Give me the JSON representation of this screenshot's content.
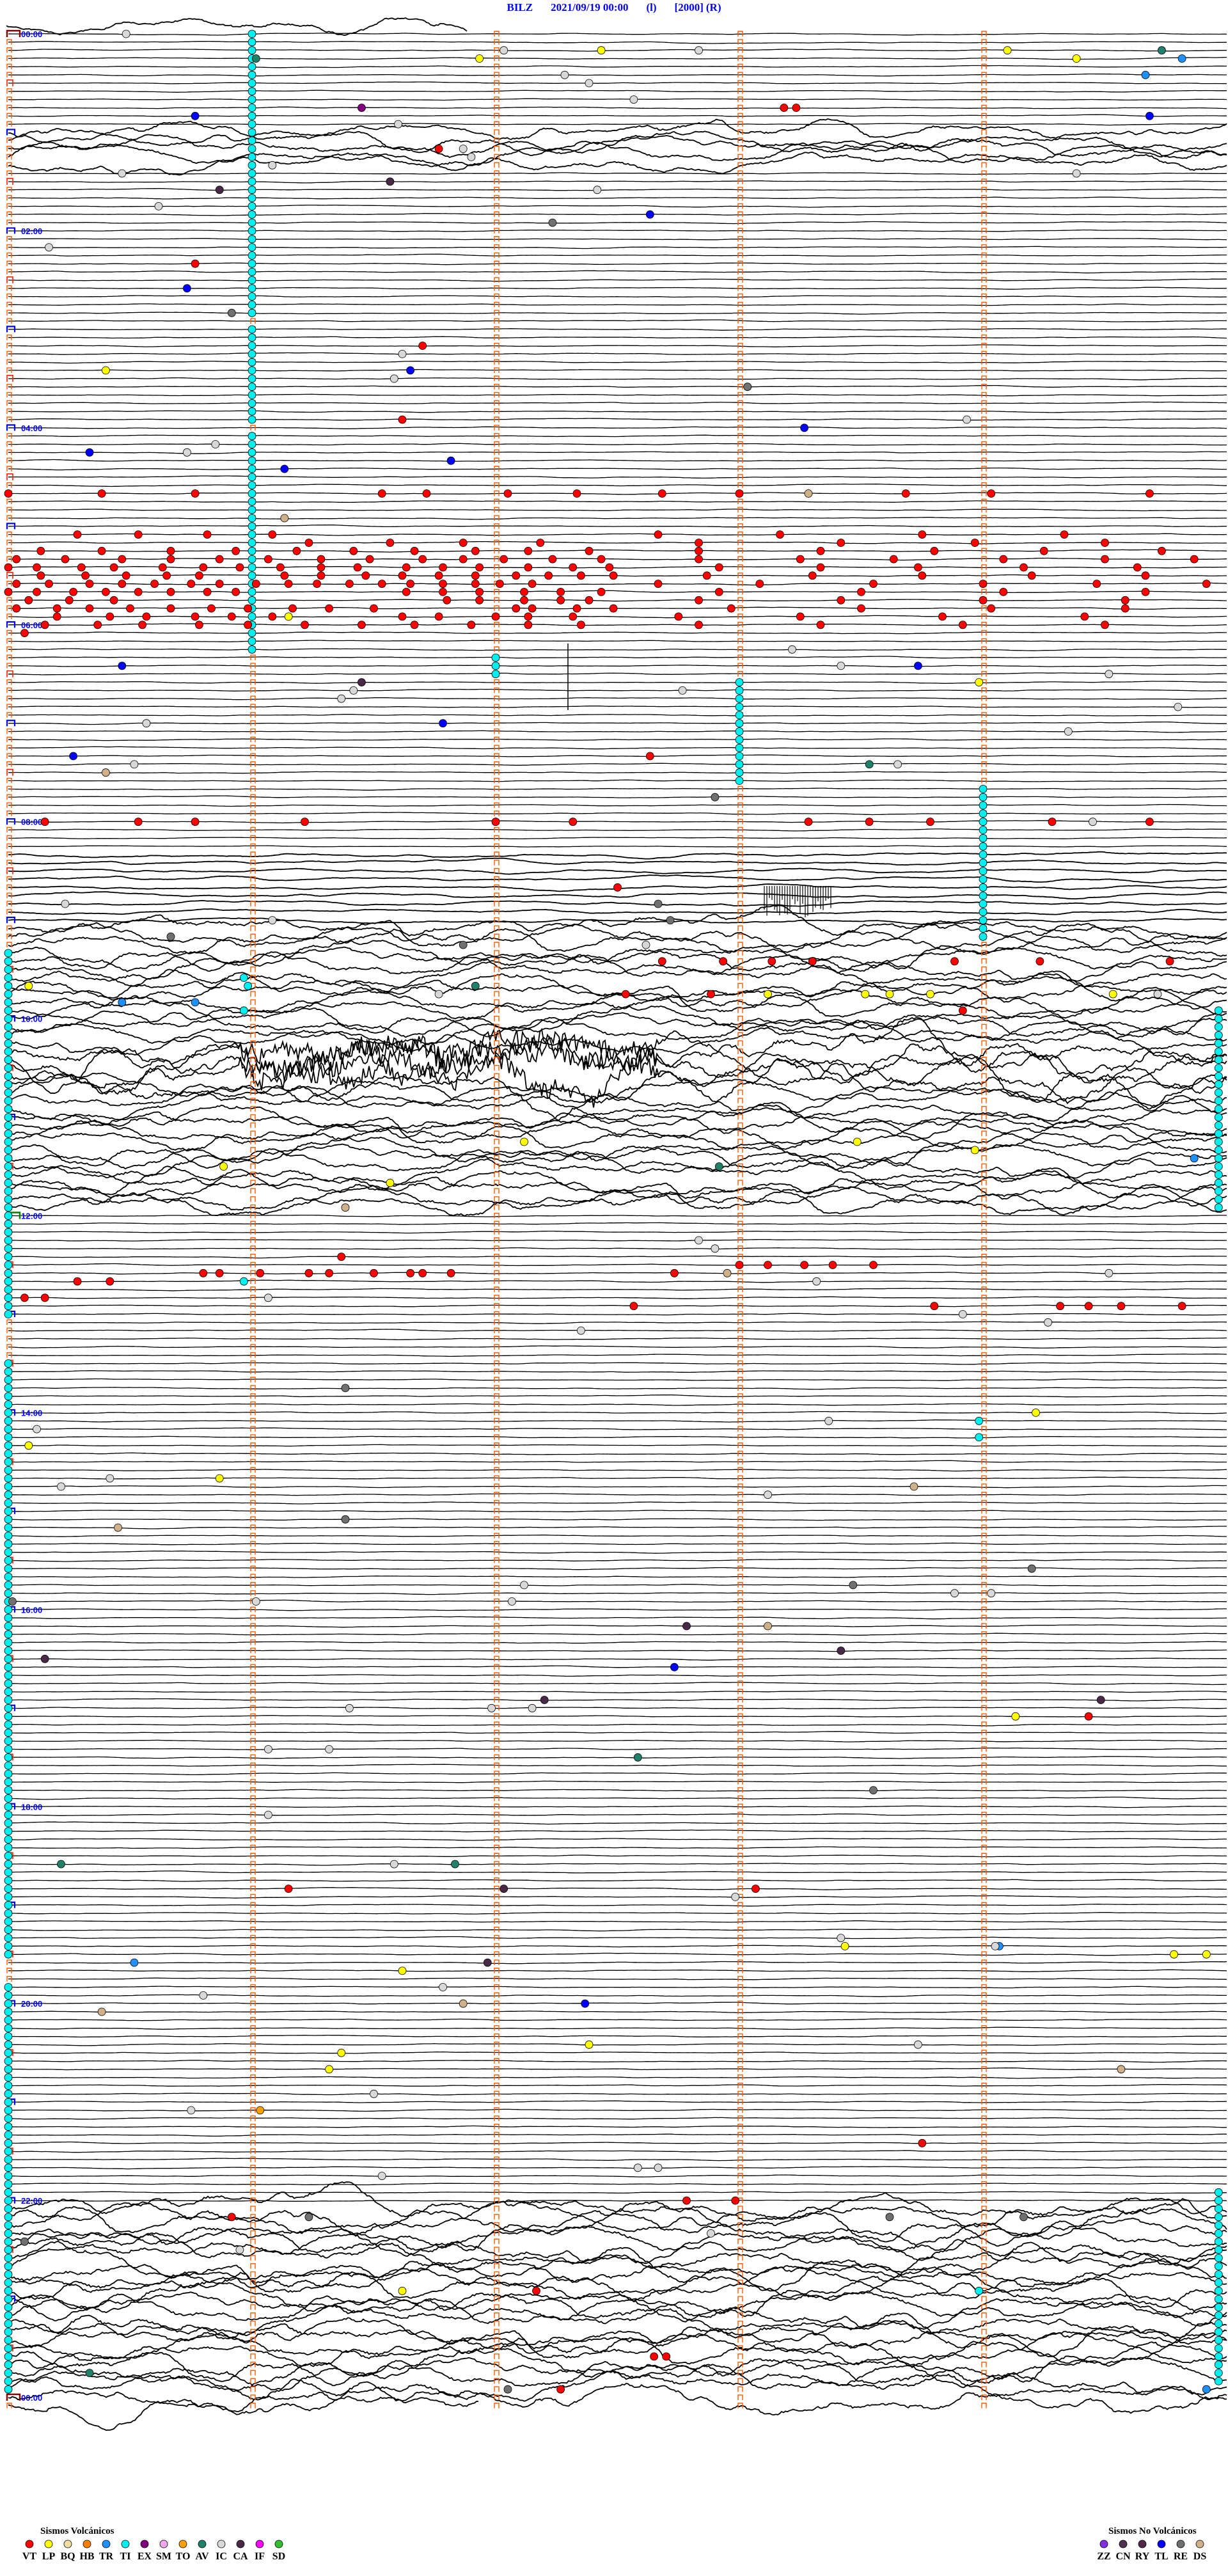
{
  "title": {
    "station": "BILZ",
    "datetime": "2021/09/19 00:00",
    "flag1": "(l)",
    "scale": "[2000]",
    "flag2": "(R)"
  },
  "chart_data": {
    "type": "scatter",
    "description_kind": "helicorder",
    "line_interval_min": 5,
    "hour_labels": [
      "00:00",
      "02:00",
      "04:00",
      "06:00",
      "08:00",
      "10:00",
      "12:00",
      "14:00",
      "16:00",
      "18:00",
      "20:00",
      "22:00",
      "00:00"
    ],
    "colors": {
      "VT": "#ff0000",
      "LP": "#ffff00",
      "BQ": "#f0dca0",
      "HB": "#ff8000",
      "TR": "#1e90ff",
      "TI": "#00f0f0",
      "EX": "#800080",
      "SM": "#f0a8e8",
      "TO": "#ffa000",
      "AV": "#20806a",
      "IC": "#d8d8d8",
      "CA": "#4a2848",
      "IF": "#ff00ff",
      "SD": "#30c030",
      "ZZ": "#8030e0",
      "CN": "#503050",
      "RY": "#502848",
      "TL": "#0000ff",
      "RE": "#707070",
      "DS": "#d0b088",
      "trace": "#000000",
      "minute_marker": "#ff5a00",
      "hour_label": "#0000ff"
    },
    "events": {
      "VT": [
        "00:48:11",
        "00:48:14",
        "01:11:46",
        "02:20:46",
        "03:11:42",
        "03:56:37",
        "04:40:00",
        "04:40:23",
        "04:40:46",
        "04:41:32",
        "04:41:43",
        "04:42:03",
        "04:42:20",
        "04:42:41",
        "04:43:00",
        "04:43:41",
        "04:44:02",
        "04:44:41",
        "05:05:17",
        "05:05:32",
        "05:05:49",
        "05:06:05",
        "05:07:40",
        "05:08:10",
        "05:08:45",
        "05:09:20",
        "05:11:14",
        "05:11:34",
        "05:11:52",
        "05:12:11",
        "05:12:50",
        "05:13:25",
        "05:13:58",
        "05:14:30",
        "05:15:08",
        "05:15:23",
        "05:15:40",
        "05:15:56",
        "05:16:11",
        "05:16:25",
        "05:16:40",
        "05:16:55",
        "05:17:08",
        "05:17:23",
        "05:17:50",
        "05:18:20",
        "05:18:48",
        "05:19:15",
        "05:19:44",
        "05:20:02",
        "05:20:14",
        "05:20:28",
        "05:20:40",
        "05:20:52",
        "05:21:04",
        "05:21:17",
        "05:21:29",
        "05:21:42",
        "05:21:52",
        "05:22:02",
        "05:22:14",
        "05:22:26",
        "05:22:50",
        "05:23:15",
        "05:23:38",
        "05:24:05",
        "05:24:30",
        "05:24:52",
        "05:25:00",
        "05:25:07",
        "05:25:18",
        "05:25:26",
        "05:25:38",
        "05:25:48",
        "05:25:57",
        "05:26:07",
        "05:26:17",
        "05:26:26",
        "05:26:38",
        "05:26:47",
        "05:26:56",
        "05:27:08",
        "05:27:19",
        "05:27:28",
        "05:27:55",
        "05:28:20",
        "05:28:44",
        "05:29:10",
        "05:29:38",
        "05:30:08",
        "05:30:19",
        "05:30:29",
        "05:30:39",
        "05:30:47",
        "05:31:08",
        "05:31:17",
        "05:31:28",
        "05:31:37",
        "05:31:46",
        "05:31:55",
        "05:32:05",
        "05:32:13",
        "05:32:21",
        "05:32:29",
        "05:32:52",
        "05:33:18",
        "05:33:45",
        "05:34:12",
        "05:34:40",
        "05:35:02",
        "05:35:10",
        "05:35:20",
        "05:35:28",
        "05:35:36",
        "05:35:45",
        "05:35:52",
        "05:36:01",
        "05:36:09",
        "05:36:16",
        "05:36:24",
        "05:36:32",
        "05:36:39",
        "05:36:47",
        "05:36:55",
        "05:37:01",
        "05:37:09",
        "05:37:40",
        "05:38:05",
        "05:38:33",
        "05:39:00",
        "05:39:28",
        "05:39:55",
        "05:40:00",
        "05:40:07",
        "05:40:16",
        "05:40:24",
        "05:40:32",
        "05:40:40",
        "05:40:49",
        "05:40:56",
        "05:41:38",
        "05:41:47",
        "05:41:56",
        "05:42:07",
        "05:42:16",
        "05:42:26",
        "05:42:55",
        "05:43:30",
        "05:44:05",
        "05:44:40",
        "05:45:05",
        "05:45:15",
        "05:45:26",
        "05:46:48",
        "05:46:56",
        "05:47:07",
        "05:47:16",
        "05:47:23",
        "05:47:50",
        "05:48:25",
        "05:49:00",
        "05:49:35",
        "05:50:02",
        "05:50:12",
        "05:50:20",
        "05:50:30",
        "05:50:40",
        "05:50:50",
        "05:50:59",
        "05:51:10",
        "05:51:19",
        "05:51:30",
        "05:52:05",
        "05:52:09",
        "05:52:20",
        "05:52:29",
        "05:52:58",
        "05:53:30",
        "05:54:02",
        "05:54:35",
        "05:55:12",
        "05:55:25",
        "05:55:34",
        "05:55:46",
        "05:55:55",
        "05:56:05",
        "05:56:37",
        "05:56:46",
        "05:57:00",
        "05:57:08",
        "05:57:19",
        "05:57:45",
        "05:58:15",
        "05:58:50",
        "05:59:25",
        "06:00:09",
        "06:00:22",
        "06:00:33",
        "06:00:47",
        "06:00:59",
        "06:01:13",
        "06:01:27",
        "06:01:40",
        "06:01:54",
        "06:02:08",
        "06:02:21",
        "06:02:50",
        "06:03:20",
        "06:03:55",
        "06:04:30",
        "06:05:04",
        "07:22:38",
        "08:00:09",
        "08:00:32",
        "08:00:46",
        "08:01:13",
        "08:02:00",
        "08:02:19",
        "08:03:17",
        "08:03:32",
        "08:03:47",
        "08:04:17",
        "08:04:41",
        "08:42:30",
        "09:27:41",
        "09:27:56",
        "09:28:08",
        "09:28:18",
        "09:28:53",
        "09:29:14",
        "09:29:46",
        "09:47:32",
        "09:47:53",
        "09:58:55",
        "12:26:22",
        "12:37:44",
        "12:33:00",
        "12:33:07",
        "12:33:16",
        "12:33:23",
        "12:33:33",
        "12:35:48",
        "12:35:52",
        "12:36:02",
        "12:36:14",
        "12:36:19",
        "12:36:30",
        "12:36:39",
        "12:36:42",
        "12:36:49",
        "12:40:17",
        "12:40:25",
        "12:50:04",
        "12:50:09",
        "12:57:34",
        "12:58:48",
        "12:59:19",
        "12:59:26",
        "12:59:34",
        "12:59:49",
        "17:09:26",
        "18:51:09",
        "18:53:04",
        "21:28:45",
        "22:02:47",
        "22:02:59",
        "22:10:55",
        "22:57:10",
        "23:37:39",
        "23:37:42",
        "23:57:16"
      ],
      "LP": [
        "00:12:26",
        "00:14:06",
        "00:16:56",
        "00:19:23",
        "03:25:24",
        "05:56:09",
        "06:38:59",
        "09:40:05",
        "09:48:07",
        "09:48:31",
        "09:48:37",
        "09:48:47",
        "09:49:32",
        "11:17:07",
        "11:18:29",
        "11:23:58",
        "11:30:53",
        "11:41:34",
        "14:04:13",
        "14:20:05",
        "14:40:52",
        "17:09:08",
        "19:28:26",
        "19:34:47",
        "19:34:55",
        "19:41:37",
        "20:27:23",
        "20:31:22",
        "20:41:19",
        "22:56:37"
      ],
      "TR": [
        "00:19:49",
        "00:29:40",
        "09:50:28",
        "09:50:46",
        "11:29:52",
        "19:29:04",
        "19:35:31",
        "23:59:55"
      ],
      "TI": [
        "09:35:58",
        "09:40:59",
        "09:55:58",
        "12:40:58",
        "14:08:59",
        "14:18:59",
        "22:58:59"
      ],
      "EX": [
        "00:46:27"
      ],
      "TO": [
        "21:06:02"
      ],
      "AV": [
        "00:14:44",
        "00:16:01",
        "07:28:32",
        "09:41:55",
        "11:32:55",
        "17:32:35",
        "18:35:13",
        "18:36:50",
        "23:45:20"
      ],
      "IC": [
        "00:00:29",
        "00:12:02",
        "00:12:50",
        "00:27:17",
        "00:32:23",
        "00:42:34",
        "00:56:36",
        "01:11:52",
        "01:16:54",
        "01:21:05",
        "01:25:28",
        "01:29:23",
        "01:37:25",
        "01:45:37",
        "02:10:10",
        "03:16:37",
        "03:31:35",
        "03:58:56",
        "04:10:51",
        "04:15:44",
        "06:18:13",
        "06:28:25",
        "06:34:31",
        "06:41:25",
        "06:42:46",
        "06:46:22",
        "06:54:48",
        "07:00:34",
        "07:09:21",
        "07:25:31",
        "07:28:39",
        "08:04:27",
        "08:50:14",
        "09:01:05",
        "09:17:37",
        "09:46:46",
        "09:49:43",
        "12:17:50",
        "12:22:54",
        "12:39:31",
        "12:43:19",
        "12:51:04",
        "13:03:55",
        "13:09:16",
        "13:12:21",
        "14:08:22",
        "14:10:07",
        "14:40:25",
        "14:45:13",
        "14:53:07",
        "15:47:07",
        "15:53:53",
        "15:54:02",
        "15:56:01",
        "15:57:04",
        "17:01:24",
        "17:01:59",
        "17:02:09",
        "17:26:04",
        "17:26:19",
        "18:06:04",
        "18:36:35",
        "18:57:59",
        "19:23:25",
        "19:29:03",
        "19:51:47",
        "19:55:48",
        "20:28:44",
        "20:56:30",
        "21:05:45",
        "21:42:35",
        "21:42:40",
        "21:46:32",
        "22:22:53",
        "22:30:57"
      ],
      "CA": [
        "01:31:34",
        "01:35:52",
        "06:36:27",
        "16:12:47",
        "16:28:25",
        "16:30:09",
        "16:57:12",
        "16:59:29",
        "18:52:02",
        "19:36:58"
      ],
      "TL": [
        "00:50:46",
        "00:54:41",
        "01:52:38",
        "02:35:44",
        "03:26:39",
        "04:03:16",
        "04:15:20",
        "04:21:49",
        "04:26:08",
        "06:25:28",
        "06:28:44",
        "07:01:47",
        "07:20:16",
        "16:37:44",
        "20:02:22"
      ],
      "RE": [
        "01:57:14",
        "02:50:55",
        "03:38:02",
        "07:47:54",
        "08:52:40",
        "09:02:43",
        "09:10:40",
        "09:16:52",
        "13:46:23",
        "15:06:23",
        "15:39:12",
        "15:48:28",
        "15:55:01",
        "17:53:33",
        "22:11:14",
        "22:13:37",
        "22:14:10",
        "22:25:04",
        "23:57:03"
      ],
      "DS": [
        "04:43:17",
        "04:56:08",
        "07:30:24",
        "11:56:23",
        "12:37:57",
        "14:48:43",
        "15:10:27",
        "16:13:07",
        "20:01:52",
        "20:05:23",
        "20:44:34"
      ]
    },
    "ti_sequences": [
      {
        "start": "00:01:00",
        "end": "02:51:00"
      },
      {
        "start": "03:01:00",
        "end": "03:56:00"
      },
      {
        "start": "04:06:00",
        "end": "06:16:00"
      },
      {
        "start": "06:22:00",
        "end": "06:32:00"
      },
      {
        "start": "06:38:00",
        "end": "07:38:00"
      },
      {
        "start": "07:44:00",
        "end": "09:14:00"
      },
      {
        "start": "09:20:00",
        "end": "13:00:00"
      },
      {
        "start": "13:30:00",
        "end": "19:30:00"
      },
      {
        "start": "19:50:00",
        "end": "23:55:00"
      },
      {
        "start": "09:59:58",
        "end": "11:59:58"
      },
      {
        "start": "21:59:58",
        "end": "23:54:58"
      }
    ]
  },
  "legend": {
    "volcanic": {
      "title": "Sismos Volcánicos",
      "items": [
        {
          "code": "VT"
        },
        {
          "code": "LP"
        },
        {
          "code": "BQ"
        },
        {
          "code": "HB"
        },
        {
          "code": "TR"
        },
        {
          "code": "TI"
        },
        {
          "code": "EX"
        },
        {
          "code": "SM"
        },
        {
          "code": "TO"
        },
        {
          "code": "AV"
        },
        {
          "code": "IC"
        },
        {
          "code": "CA"
        },
        {
          "code": "IF"
        },
        {
          "code": "SD"
        }
      ]
    },
    "nonvolcanic": {
      "title": "Sismos No Volcánicos",
      "items": [
        {
          "code": "ZZ"
        },
        {
          "code": "CN"
        },
        {
          "code": "RY"
        },
        {
          "code": "TL"
        },
        {
          "code": "RE"
        },
        {
          "code": "DS"
        }
      ]
    }
  }
}
